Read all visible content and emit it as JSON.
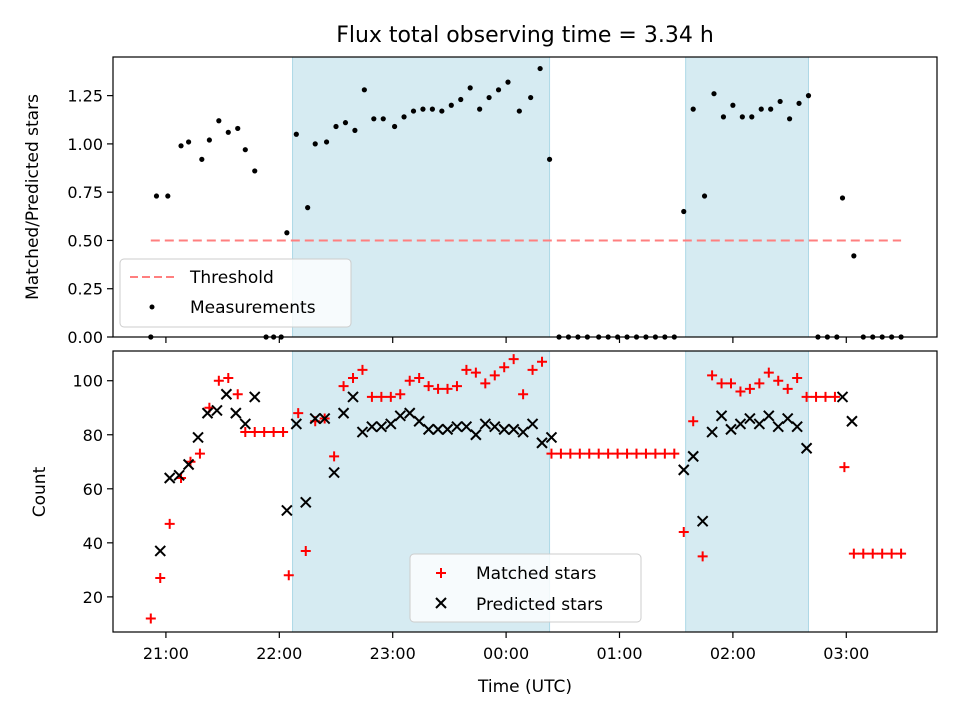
{
  "chart_data": {
    "type": "scatter",
    "title": "Flux total observing time = 3.34 h",
    "xlabel": "Time (UTC)",
    "x_ticks": [
      "21:00",
      "22:00",
      "23:00",
      "00:00",
      "01:00",
      "02:00",
      "03:00"
    ],
    "x_range": [
      "20:32",
      "03:48"
    ],
    "shaded_intervals": [
      [
        "22:07",
        "00:23"
      ],
      [
        "01:35",
        "02:40"
      ]
    ],
    "shade_color": "#add8e6",
    "panels": [
      {
        "ylabel": "Matched/Predicted stars",
        "ylim": [
          0,
          1.45
        ],
        "yticks": [
          "0.00",
          "0.25",
          "0.50",
          "0.75",
          "1.00",
          "1.25"
        ],
        "legend_position": "lower-left",
        "series": [
          {
            "name": "Threshold",
            "style": "dashed-line",
            "color": "#ff7f7f",
            "points": [
              [
                "20:52",
                0.5
              ],
              [
                "03:29",
                0.5
              ]
            ]
          },
          {
            "name": "Measurements",
            "style": "dot",
            "color": "#000000",
            "points": [
              [
                "20:52",
                0.0
              ],
              [
                "20:55",
                0.73
              ],
              [
                "21:01",
                0.73
              ],
              [
                "21:08",
                0.99
              ],
              [
                "21:12",
                1.01
              ],
              [
                "21:19",
                0.92
              ],
              [
                "21:23",
                1.02
              ],
              [
                "21:28",
                1.12
              ],
              [
                "21:33",
                1.06
              ],
              [
                "21:38",
                1.08
              ],
              [
                "21:42",
                0.97
              ],
              [
                "21:47",
                0.86
              ],
              [
                "21:53",
                0.0
              ],
              [
                "21:57",
                0.0
              ],
              [
                "22:01",
                0.0
              ],
              [
                "22:04",
                0.54
              ],
              [
                "22:09",
                1.05
              ],
              [
                "22:15",
                0.67
              ],
              [
                "22:19",
                1.0
              ],
              [
                "22:25",
                1.01
              ],
              [
                "22:30",
                1.09
              ],
              [
                "22:35",
                1.11
              ],
              [
                "22:40",
                1.07
              ],
              [
                "22:45",
                1.28
              ],
              [
                "22:50",
                1.13
              ],
              [
                "22:55",
                1.13
              ],
              [
                "23:01",
                1.09
              ],
              [
                "23:06",
                1.14
              ],
              [
                "23:11",
                1.17
              ],
              [
                "23:16",
                1.18
              ],
              [
                "23:21",
                1.18
              ],
              [
                "23:26",
                1.17
              ],
              [
                "23:31",
                1.2
              ],
              [
                "23:36",
                1.23
              ],
              [
                "23:41",
                1.29
              ],
              [
                "23:46",
                1.18
              ],
              [
                "23:51",
                1.24
              ],
              [
                "23:56",
                1.28
              ],
              [
                "00:01",
                1.32
              ],
              [
                "00:07",
                1.17
              ],
              [
                "00:13",
                1.24
              ],
              [
                "00:18",
                1.39
              ],
              [
                "00:23",
                0.92
              ],
              [
                "00:28",
                0.0
              ],
              [
                "00:33",
                0.0
              ],
              [
                "00:38",
                0.0
              ],
              [
                "00:43",
                0.0
              ],
              [
                "00:49",
                0.0
              ],
              [
                "00:54",
                0.0
              ],
              [
                "00:59",
                0.0
              ],
              [
                "01:04",
                0.0
              ],
              [
                "01:09",
                0.0
              ],
              [
                "01:14",
                0.0
              ],
              [
                "01:19",
                0.0
              ],
              [
                "01:24",
                0.0
              ],
              [
                "01:29",
                0.0
              ],
              [
                "01:34",
                0.65
              ],
              [
                "01:39",
                1.18
              ],
              [
                "01:45",
                0.73
              ],
              [
                "01:50",
                1.26
              ],
              [
                "01:55",
                1.14
              ],
              [
                "02:00",
                1.2
              ],
              [
                "02:05",
                1.14
              ],
              [
                "02:10",
                1.14
              ],
              [
                "02:15",
                1.18
              ],
              [
                "02:20",
                1.18
              ],
              [
                "02:25",
                1.22
              ],
              [
                "02:30",
                1.13
              ],
              [
                "02:35",
                1.21
              ],
              [
                "02:40",
                1.25
              ],
              [
                "02:45",
                0.0
              ],
              [
                "02:50",
                0.0
              ],
              [
                "02:55",
                0.0
              ],
              [
                "02:58",
                0.72
              ],
              [
                "03:04",
                0.42
              ],
              [
                "03:09",
                0.0
              ],
              [
                "03:14",
                0.0
              ],
              [
                "03:19",
                0.0
              ],
              [
                "03:24",
                0.0
              ],
              [
                "03:29",
                0.0
              ]
            ]
          }
        ]
      },
      {
        "ylabel": "Count",
        "ylim": [
          7,
          111
        ],
        "yticks": [
          "20",
          "40",
          "60",
          "80",
          "100"
        ],
        "legend_position": "lower-center",
        "series": [
          {
            "name": "Matched stars",
            "style": "plus",
            "color": "#ff0000",
            "points": [
              [
                "20:52",
                12
              ],
              [
                "20:57",
                27
              ],
              [
                "21:02",
                47
              ],
              [
                "21:08",
                64
              ],
              [
                "21:13",
                70
              ],
              [
                "21:18",
                73
              ],
              [
                "21:23",
                90
              ],
              [
                "21:28",
                100
              ],
              [
                "21:33",
                101
              ],
              [
                "21:38",
                95
              ],
              [
                "21:42",
                81
              ],
              [
                "21:47",
                81
              ],
              [
                "21:52",
                81
              ],
              [
                "21:57",
                81
              ],
              [
                "22:02",
                81
              ],
              [
                "22:05",
                28
              ],
              [
                "22:10",
                88
              ],
              [
                "22:14",
                37
              ],
              [
                "22:19",
                85
              ],
              [
                "22:24",
                86
              ],
              [
                "22:29",
                72
              ],
              [
                "22:34",
                98
              ],
              [
                "22:39",
                101
              ],
              [
                "22:44",
                104
              ],
              [
                "22:49",
                94
              ],
              [
                "22:54",
                94
              ],
              [
                "22:59",
                94
              ],
              [
                "23:04",
                95
              ],
              [
                "23:09",
                100
              ],
              [
                "23:14",
                101
              ],
              [
                "23:19",
                98
              ],
              [
                "23:24",
                97
              ],
              [
                "23:29",
                97
              ],
              [
                "23:34",
                98
              ],
              [
                "23:39",
                104
              ],
              [
                "23:44",
                103
              ],
              [
                "23:49",
                99
              ],
              [
                "23:54",
                102
              ],
              [
                "23:59",
                105
              ],
              [
                "00:04",
                108
              ],
              [
                "00:09",
                95
              ],
              [
                "00:14",
                104
              ],
              [
                "00:19",
                107
              ],
              [
                "00:24",
                73
              ],
              [
                "00:29",
                73
              ],
              [
                "00:34",
                73
              ],
              [
                "00:39",
                73
              ],
              [
                "00:44",
                73
              ],
              [
                "00:49",
                73
              ],
              [
                "00:54",
                73
              ],
              [
                "00:59",
                73
              ],
              [
                "01:04",
                73
              ],
              [
                "01:09",
                73
              ],
              [
                "01:14",
                73
              ],
              [
                "01:19",
                73
              ],
              [
                "01:24",
                73
              ],
              [
                "01:29",
                73
              ],
              [
                "01:34",
                44
              ],
              [
                "01:39",
                85
              ],
              [
                "01:44",
                35
              ],
              [
                "01:49",
                102
              ],
              [
                "01:54",
                99
              ],
              [
                "01:59",
                99
              ],
              [
                "02:04",
                96
              ],
              [
                "02:09",
                97
              ],
              [
                "02:14",
                99
              ],
              [
                "02:19",
                103
              ],
              [
                "02:24",
                100
              ],
              [
                "02:29",
                97
              ],
              [
                "02:34",
                101
              ],
              [
                "02:39",
                94
              ],
              [
                "02:44",
                94
              ],
              [
                "02:49",
                94
              ],
              [
                "02:54",
                94
              ],
              [
                "02:59",
                68
              ],
              [
                "03:04",
                36
              ],
              [
                "03:09",
                36
              ],
              [
                "03:14",
                36
              ],
              [
                "03:19",
                36
              ],
              [
                "03:24",
                36
              ],
              [
                "03:29",
                36
              ]
            ]
          },
          {
            "name": "Predicted stars",
            "style": "x",
            "color": "#000000",
            "points": [
              [
                "20:57",
                37
              ],
              [
                "21:02",
                64
              ],
              [
                "21:07",
                65
              ],
              [
                "21:12",
                69
              ],
              [
                "21:17",
                79
              ],
              [
                "21:22",
                88
              ],
              [
                "21:27",
                89
              ],
              [
                "21:32",
                95
              ],
              [
                "21:37",
                88
              ],
              [
                "21:42",
                84
              ],
              [
                "21:47",
                94
              ],
              [
                "22:04",
                52
              ],
              [
                "22:09",
                84
              ],
              [
                "22:14",
                55
              ],
              [
                "22:19",
                86
              ],
              [
                "22:24",
                86
              ],
              [
                "22:29",
                66
              ],
              [
                "22:34",
                88
              ],
              [
                "22:39",
                94
              ],
              [
                "22:44",
                81
              ],
              [
                "22:49",
                83
              ],
              [
                "22:54",
                83
              ],
              [
                "22:59",
                84
              ],
              [
                "23:04",
                87
              ],
              [
                "23:09",
                88
              ],
              [
                "23:14",
                85
              ],
              [
                "23:19",
                82
              ],
              [
                "23:24",
                82
              ],
              [
                "23:29",
                82
              ],
              [
                "23:34",
                83
              ],
              [
                "23:39",
                83
              ],
              [
                "23:44",
                80
              ],
              [
                "23:49",
                84
              ],
              [
                "23:54",
                83
              ],
              [
                "23:59",
                82
              ],
              [
                "00:04",
                82
              ],
              [
                "00:09",
                81
              ],
              [
                "00:14",
                84
              ],
              [
                "00:19",
                77
              ],
              [
                "00:24",
                79
              ],
              [
                "01:34",
                67
              ],
              [
                "01:39",
                72
              ],
              [
                "01:44",
                48
              ],
              [
                "01:49",
                81
              ],
              [
                "01:54",
                87
              ],
              [
                "01:59",
                82
              ],
              [
                "02:04",
                84
              ],
              [
                "02:09",
                86
              ],
              [
                "02:14",
                84
              ],
              [
                "02:19",
                87
              ],
              [
                "02:24",
                83
              ],
              [
                "02:29",
                86
              ],
              [
                "02:34",
                83
              ],
              [
                "02:39",
                75
              ],
              [
                "02:58",
                94
              ],
              [
                "03:03",
                85
              ]
            ]
          }
        ]
      }
    ]
  }
}
